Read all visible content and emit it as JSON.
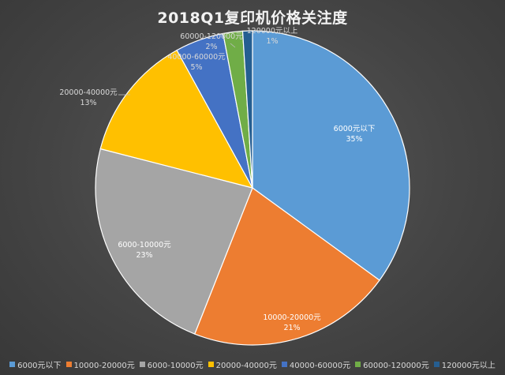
{
  "chart_data": {
    "type": "pie",
    "title": "2018Q1复印机价格关注度",
    "slices": [
      {
        "name": "6000元以下",
        "value": 35,
        "pct_label": "35%",
        "color": "#5b9bd5"
      },
      {
        "name": "10000-20000元",
        "value": 21,
        "pct_label": "21%",
        "color": "#ed7d31"
      },
      {
        "name": "6000-10000元",
        "value": 23,
        "pct_label": "23%",
        "color": "#a5a5a5"
      },
      {
        "name": "20000-40000元",
        "value": 13,
        "pct_label": "13%",
        "color": "#ffc000"
      },
      {
        "name": "40000-60000元",
        "value": 5,
        "pct_label": "5%",
        "color": "#4472c4"
      },
      {
        "name": "60000-120000元",
        "value": 2,
        "pct_label": "2%",
        "color": "#70ad47"
      },
      {
        "name": "120000元以上",
        "value": 1,
        "pct_label": "1%",
        "color": "#255e91"
      }
    ],
    "legend_position": "bottom"
  }
}
